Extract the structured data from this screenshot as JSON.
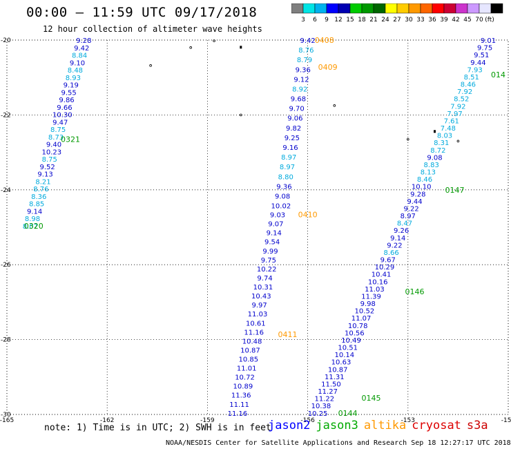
{
  "title": "00:00 – 11:59 UTC 09/17/2018",
  "subtitle": "12 hour collection of altimeter wave heights",
  "colorbar": {
    "colors": [
      "#7f7f7f",
      "#00e5e5",
      "#00b2ee",
      "#0000ff",
      "#0000b2",
      "#00cc00",
      "#009900",
      "#006600",
      "#ffff00",
      "#ffcc00",
      "#ff9900",
      "#ff6600",
      "#ff0000",
      "#cc0033",
      "#cc33cc",
      "#cc99ff",
      "#e6e6ff",
      "#000000"
    ],
    "labels": [
      "3",
      "6",
      "9",
      "12",
      "15",
      "18",
      "21",
      "24",
      "27",
      "30",
      "33",
      "36",
      "39",
      "42",
      "45",
      "70",
      "(ft)"
    ]
  },
  "note": "note: 1) Time is in UTC; 2) SWH is in feet",
  "legend": [
    {
      "name": "jason2",
      "color": "#0000ff"
    },
    {
      "name": "jason3",
      "color": "#00aa00"
    },
    {
      "name": "altika",
      "color": "#ff9900"
    },
    {
      "name": "cryosat",
      "color": "#dd0000"
    },
    {
      "name": "s3a",
      "color": "#cc0000"
    }
  ],
  "credit": "NOAA/NESDIS Center for Satellite Applications and Research   Sep 18 12:27:17 UTC 2018",
  "chart_data": {
    "type": "scatter",
    "xlim": [
      -165,
      -150
    ],
    "ylim": [
      -30,
      -20
    ],
    "x_ticks": [
      "-165",
      "-162",
      "-159",
      "-156",
      "-153",
      "-150"
    ],
    "y_ticks": [
      "-20",
      "-22",
      "-24",
      "-26",
      "-28",
      "-30"
    ],
    "grid": true,
    "colors": {
      "dark": "#0000cc",
      "light": "#00aadd"
    },
    "passes": [
      {
        "label": "0320",
        "label_color": "#009900",
        "label_at": [
          -164.2,
          -24.96
        ],
        "lon0": -162.7,
        "lat0": -20.0,
        "lon1": -164.3,
        "lat1": -24.96,
        "values": [
          "9.28",
          "9.42",
          "8.84",
          "9.10",
          "8.48",
          "8.93",
          "9.19",
          "9.55",
          "9.86",
          "9.66",
          "10.30",
          "9.47",
          "8.75",
          "8.73",
          "9.40",
          "10.23",
          "8.75",
          "9.52",
          "9.13",
          "8.21",
          "8.76",
          "8.36",
          "8.85",
          "9.14",
          "8.98",
          "8.07"
        ],
        "light": [
          false,
          false,
          true,
          false,
          true,
          true,
          false,
          false,
          false,
          false,
          false,
          false,
          true,
          true,
          false,
          false,
          true,
          false,
          false,
          true,
          true,
          true,
          true,
          false,
          true,
          true
        ]
      },
      {
        "label": "0321",
        "label_color": "#009900",
        "label_at": [
          -163.1,
          -22.65
        ],
        "noline": true
      },
      {
        "label": "0408",
        "label_color": "#ff9900",
        "label_at": [
          -155.5,
          -20.0
        ],
        "lon0": -156.0,
        "lat0": -20.0,
        "lon1": -156.8,
        "lat1": -24.42,
        "values": [
          "9.42",
          "8.76",
          "8.79",
          "9.36",
          "9.12",
          "8.92",
          "9.68",
          "9.70",
          "9.06",
          "9.82",
          "9.25",
          "9.16",
          "8.97",
          "8.97",
          "8.80",
          "9.36",
          "9.08",
          "10.02"
        ],
        "light": [
          false,
          true,
          true,
          false,
          false,
          true,
          false,
          false,
          false,
          false,
          false,
          false,
          true,
          true,
          true,
          false,
          false,
          false
        ]
      },
      {
        "label": "0409",
        "label_color": "#ff9900",
        "label_at": [
          -155.4,
          -20.72
        ],
        "noline": true
      },
      {
        "label": "0410",
        "label_color": "#ff9900",
        "label_at": [
          -156.0,
          -24.66
        ],
        "lon0": -156.9,
        "lat0": -24.66,
        "lon1": -158.1,
        "lat1": -29.96,
        "values": [
          "9.03",
          "9.07",
          "9.14",
          "9.54",
          "9.99",
          "9.75",
          "10.22",
          "9.74",
          "10.31",
          "10.43",
          "9.97",
          "11.03",
          "10.61",
          "11.16",
          "10.48",
          "10.87",
          "10.85",
          "11.01",
          "10.72",
          "10.89",
          "11.36",
          "11.11",
          "11.16"
        ],
        "light": [
          false,
          false,
          false,
          false,
          false,
          false,
          false,
          false,
          false,
          false,
          false,
          false,
          false,
          false,
          false,
          false,
          false,
          false,
          false,
          false,
          false,
          false,
          false
        ]
      },
      {
        "label": "0411",
        "label_color": "#ff9900",
        "label_at": [
          -156.6,
          -27.86
        ],
        "noline": true
      },
      {
        "label": "0144",
        "label_color": "#009900",
        "label_at": [
          -154.8,
          -29.96
        ],
        "lon0": -150.6,
        "lat0": -20.0,
        "lon1": -155.7,
        "lat1": -29.96,
        "values": [
          "9.01",
          "9.75",
          "9.51",
          "9.44",
          "7.93",
          "8.51",
          "8.46",
          "7.92",
          "8.52",
          "7.92",
          "7.97",
          "7.61",
          "7.48",
          "8.03",
          "8.31",
          "8.72",
          "9.08",
          "8.83",
          "8.13",
          "8.46",
          "10.10",
          "9.28",
          "9.44",
          "9.22",
          "8.97",
          "8.47",
          "9.26",
          "9.14",
          "9.22",
          "8.66",
          "9.67",
          "10.29",
          "10.41",
          "10.16",
          "11.03",
          "11.39",
          "9.98",
          "10.52",
          "11.07",
          "10.78",
          "10.56",
          "10.49",
          "10.51",
          "10.14",
          "10.63",
          "10.87",
          "11.31",
          "11.50",
          "11.27",
          "11.22",
          "10.38",
          "10.25"
        ],
        "light": [
          false,
          false,
          false,
          false,
          true,
          true,
          true,
          true,
          true,
          true,
          true,
          true,
          true,
          true,
          true,
          true,
          false,
          true,
          true,
          true,
          false,
          false,
          false,
          false,
          false,
          true,
          false,
          false,
          false,
          true,
          false,
          false,
          false,
          false,
          false,
          false,
          false,
          false,
          false,
          false,
          false,
          false,
          false,
          false,
          false,
          false,
          false,
          false,
          false,
          false,
          false,
          false
        ]
      },
      {
        "label": "0145",
        "label_color": "#009900",
        "label_at": [
          -154.1,
          -29.56
        ],
        "noline": true
      },
      {
        "label": "0146",
        "label_color": "#009900",
        "label_at": [
          -152.8,
          -26.72
        ],
        "noline": true
      },
      {
        "label": "0147",
        "label_color": "#009900",
        "label_at": [
          -151.6,
          -24.0
        ],
        "noline": true
      },
      {
        "label": "014",
        "label_color": "#009900",
        "label_at": [
          -150.3,
          -20.92
        ],
        "noline": true
      }
    ]
  }
}
